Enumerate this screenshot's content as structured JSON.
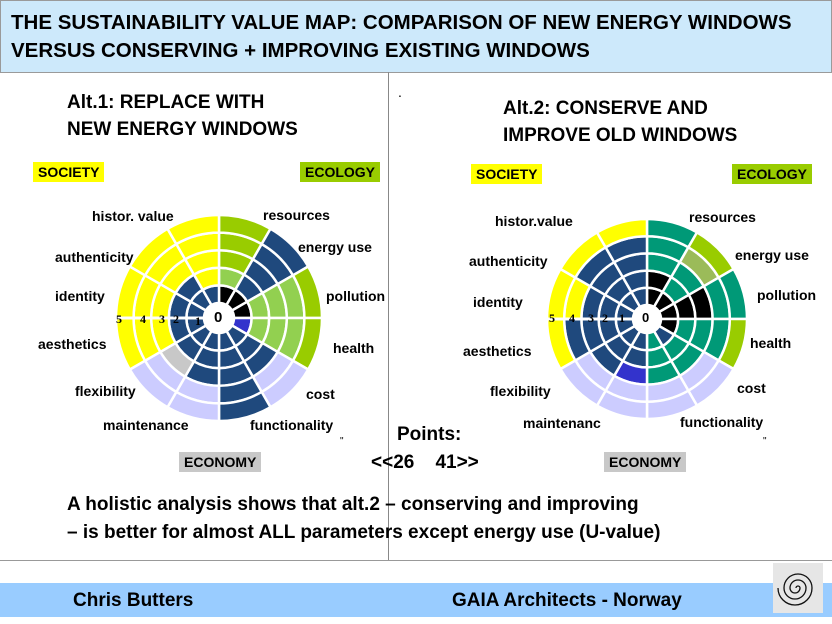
{
  "title": {
    "line1": "THE SUSTAINABILITY VALUE MAP: COMPARISON OF NEW ENERGY WINDOWS",
    "line2": "VERSUS CONSERVING + IMPROVING EXISTING WINDOWS"
  },
  "colors": {
    "Y": "#ffff00",
    "G": "#99cc00",
    "L": "#92d050",
    "B": "#1f497d",
    "V": "#ccccff",
    "S": "#c8c8c8",
    "P": "#3333cc",
    "T": "#009977",
    "O": "#9bbb59",
    "K": "#000000"
  },
  "tags": {
    "society": "SOCIETY",
    "ecology": "ECOLOGY",
    "economy": "ECONOMY"
  },
  "ring_numbers": [
    "5",
    "4",
    "3",
    "2",
    "1"
  ],
  "center_label": "0",
  "alt1": {
    "title1": "Alt.1: REPLACE WITH",
    "title2": "NEW ENERGY WINDOWS",
    "labels": [
      "resources",
      "energy use",
      "pollution",
      "health",
      "cost",
      "functionality",
      "maintenance",
      "flexibility",
      "aesthetics",
      "identity",
      "authenticity",
      "histor. value"
    ],
    "rings": [
      [
        "K",
        "L",
        "G",
        "G",
        "G"
      ],
      [
        "K",
        "B",
        "B",
        "B",
        "B"
      ],
      [
        "K",
        "L",
        "L",
        "L",
        "G"
      ],
      [
        "P",
        "L",
        "L",
        "L",
        "G"
      ],
      [
        "B",
        "B",
        "B",
        "V",
        "V"
      ],
      [
        "B",
        "B",
        "B",
        "B",
        "B"
      ],
      [
        "B",
        "B",
        "B",
        "V",
        "V"
      ],
      [
        "B",
        "B",
        "S",
        "V",
        "V"
      ],
      [
        "B",
        "B",
        "Y",
        "Y",
        "Y"
      ],
      [
        "B",
        "B",
        "Y",
        "Y",
        "Y"
      ],
      [
        "B",
        "B",
        "Y",
        "Y",
        "Y"
      ],
      [
        "B",
        "Y",
        "Y",
        "Y",
        "Y"
      ]
    ]
  },
  "alt2": {
    "title1": "Alt.2: CONSERVE AND",
    "title2": "IMPROVE OLD WINDOWS",
    "labels": [
      "resources",
      "energy use",
      "pollution",
      "health",
      "cost",
      "functionality",
      "maintenanc",
      "flexibility",
      "aesthetics",
      "identity",
      "authenticity",
      "histor.value"
    ],
    "rings": [
      [
        "K",
        "K",
        "T",
        "T",
        "T"
      ],
      [
        "K",
        "T",
        "T",
        "O",
        "G"
      ],
      [
        "K",
        "K",
        "K",
        "T",
        "T"
      ],
      [
        "K",
        "T",
        "T",
        "T",
        "G"
      ],
      [
        "B",
        "T",
        "T",
        "V",
        "V"
      ],
      [
        "T",
        "T",
        "T",
        "V",
        "V"
      ],
      [
        "B",
        "B",
        "P",
        "V",
        "V"
      ],
      [
        "B",
        "B",
        "B",
        "V",
        "V"
      ],
      [
        "B",
        "B",
        "B",
        "B",
        "Y"
      ],
      [
        "B",
        "B",
        "B",
        "Y",
        "Y"
      ],
      [
        "B",
        "B",
        "B",
        "B",
        "Y"
      ],
      [
        "B",
        "B",
        "B",
        "B",
        "Y"
      ]
    ]
  },
  "points": {
    "label": "Points:",
    "value": "<<26    41>>"
  },
  "marks": {
    "dot": ".",
    "quote": "\""
  },
  "summary": {
    "line1": "A holistic analysis shows that alt.2  – conserving and improving",
    "line2": "– is better for almost ALL parameters except energy use (U-value)"
  },
  "footer": {
    "author": "Chris Butters",
    "org": "GAIA Architects - Norway"
  }
}
